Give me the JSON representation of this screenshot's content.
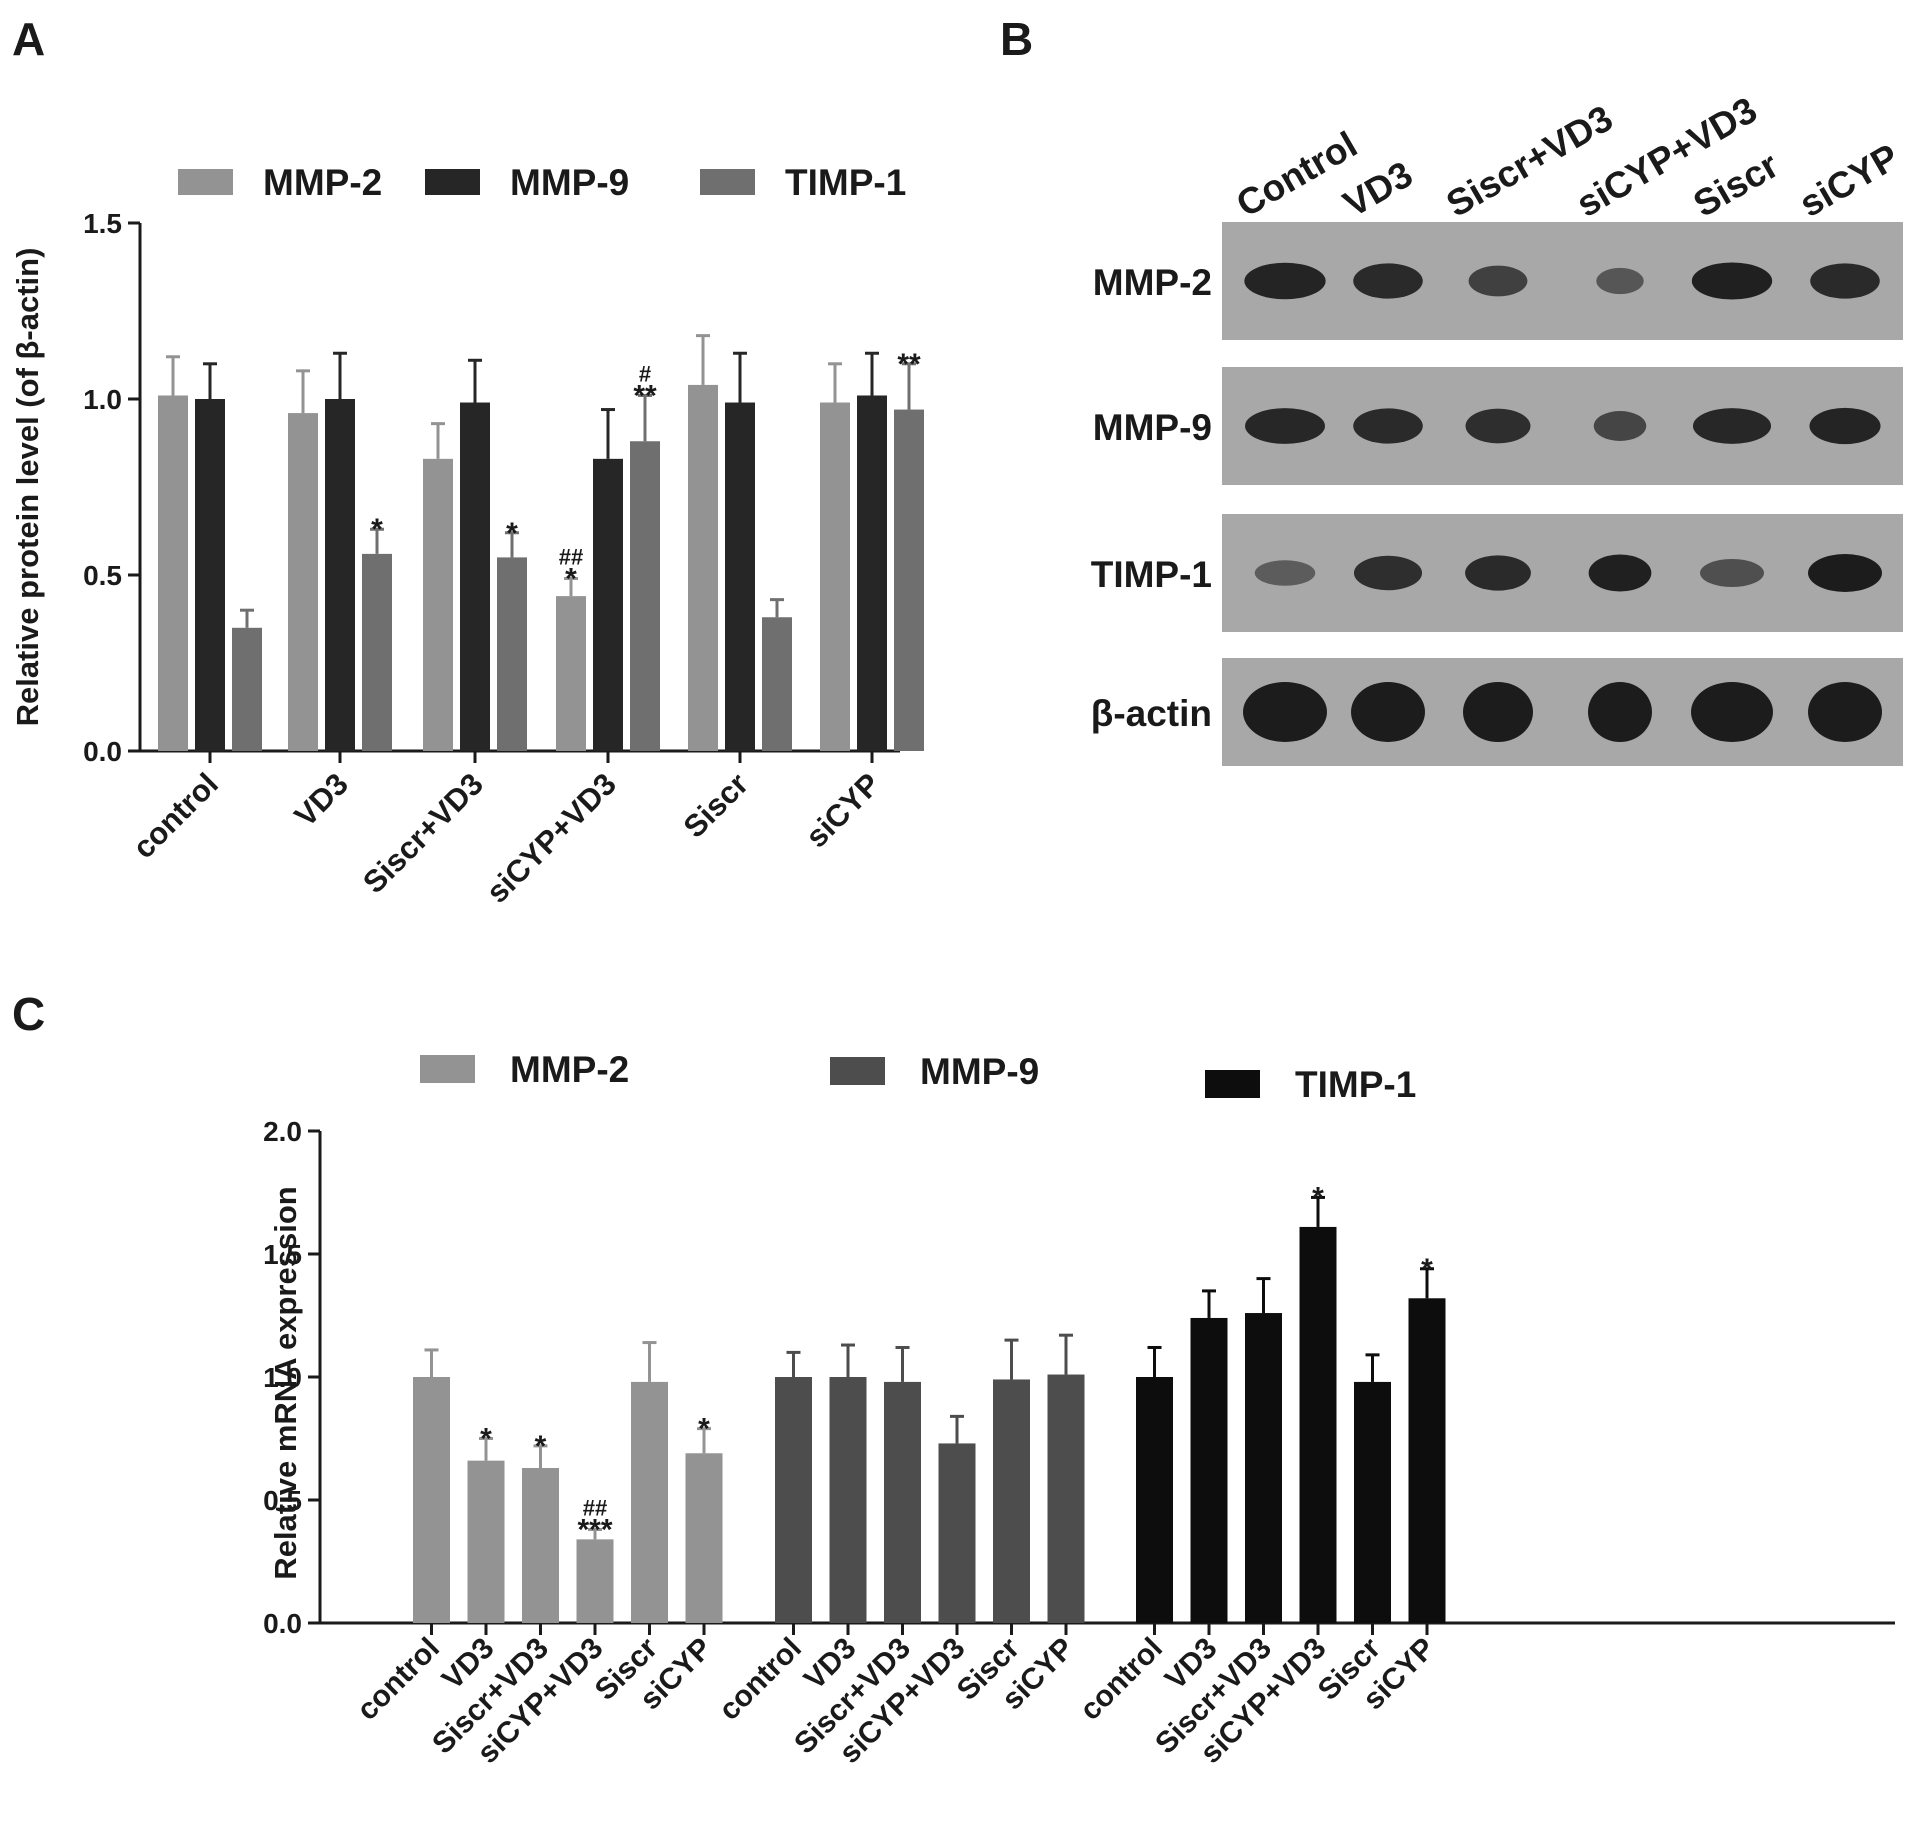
{
  "panel_labels": {
    "a": "A",
    "b": "B",
    "c": "C"
  },
  "colors": {
    "mmp2_protein": "#939393",
    "mmp9_protein": "#262626",
    "timp1_protein": "#6f6f6f",
    "mmp2_mrna": "#939393",
    "mmp9_mrna": "#4d4d4d",
    "timp1_mrna": "#0d0d0d",
    "blot_background": "#a8a8a8",
    "band": "#1c1c1c"
  },
  "blot": {
    "lanes": [
      "Control",
      "VD3",
      "Siscr+VD3",
      "siCYP+VD3",
      "Siscr",
      "siCYP"
    ],
    "rows": [
      {
        "label": "MMP-2",
        "intensity": [
          0.92,
          0.85,
          0.6,
          0.35,
          0.95,
          0.85
        ]
      },
      {
        "label": "MMP-9",
        "intensity": [
          0.88,
          0.85,
          0.82,
          0.55,
          0.88,
          0.9
        ]
      },
      {
        "label": "TIMP-1",
        "intensity": [
          0.3,
          0.8,
          0.85,
          0.95,
          0.45,
          1.0
        ]
      },
      {
        "label": "β-actin",
        "intensity": [
          1.0,
          1.0,
          1.0,
          1.0,
          1.0,
          1.0
        ]
      }
    ]
  },
  "chart_data": [
    {
      "type": "bar",
      "panel": "A",
      "title": "",
      "xlabel": "",
      "ylabel": "Relative protein level (of β-actin)",
      "ylim": [
        0,
        1.5
      ],
      "yticks": [
        "0.0",
        "0.5",
        "1.0",
        "1.5"
      ],
      "legend_position": "top",
      "categories": [
        "control",
        "VD3",
        "Siscr+VD3",
        "siCYP+VD3",
        "Siscr",
        "siCYP"
      ],
      "series": [
        {
          "name": "MMP-2",
          "values": [
            1.01,
            0.96,
            0.83,
            0.44,
            1.04,
            0.99
          ],
          "errors": [
            0.11,
            0.12,
            0.1,
            0.05,
            0.14,
            0.11
          ],
          "annotations": [
            "",
            "",
            "",
            "##\n*",
            "",
            ""
          ]
        },
        {
          "name": "MMP-9",
          "values": [
            1.0,
            1.0,
            0.99,
            0.83,
            0.99,
            1.01
          ],
          "errors": [
            0.1,
            0.13,
            0.12,
            0.14,
            0.14,
            0.12
          ],
          "annotations": [
            "",
            "",
            "",
            "",
            "",
            ""
          ]
        },
        {
          "name": "TIMP-1",
          "values": [
            0.35,
            0.56,
            0.55,
            0.88,
            0.38,
            0.97
          ],
          "errors": [
            0.05,
            0.07,
            0.07,
            0.13,
            0.05,
            0.13
          ],
          "annotations": [
            "",
            "*",
            "*",
            "#\n**",
            "",
            "**"
          ]
        }
      ]
    },
    {
      "type": "bar",
      "panel": "C",
      "title": "",
      "xlabel": "",
      "ylabel": "Relative mRNA expression",
      "ylim": [
        0,
        2.0
      ],
      "yticks": [
        "0.0",
        "0.5",
        "1.0",
        "1.5",
        "2.0"
      ],
      "legend_position": "top",
      "categories": [
        "control",
        "VD3",
        "Siscr+VD3",
        "siCYP+VD3",
        "Siscr",
        "siCYP"
      ],
      "series": [
        {
          "name": "MMP-2",
          "values": [
            1.0,
            0.66,
            0.63,
            0.34,
            0.98,
            0.69
          ],
          "errors": [
            0.11,
            0.09,
            0.09,
            0.04,
            0.16,
            0.1
          ],
          "annotations": [
            "",
            "*",
            "*",
            "##\n***",
            "",
            "*"
          ]
        },
        {
          "name": "MMP-9",
          "values": [
            1.0,
            1.0,
            0.98,
            0.73,
            0.99,
            1.01
          ],
          "errors": [
            0.1,
            0.13,
            0.14,
            0.11,
            0.16,
            0.16
          ],
          "annotations": [
            "",
            "",
            "",
            "",
            "",
            ""
          ]
        },
        {
          "name": "TIMP-1",
          "values": [
            1.0,
            1.24,
            1.26,
            1.61,
            0.98,
            1.32
          ],
          "errors": [
            0.12,
            0.11,
            0.14,
            0.12,
            0.11,
            0.12
          ],
          "annotations": [
            "",
            "",
            "",
            "*",
            "",
            "*"
          ]
        }
      ]
    }
  ]
}
